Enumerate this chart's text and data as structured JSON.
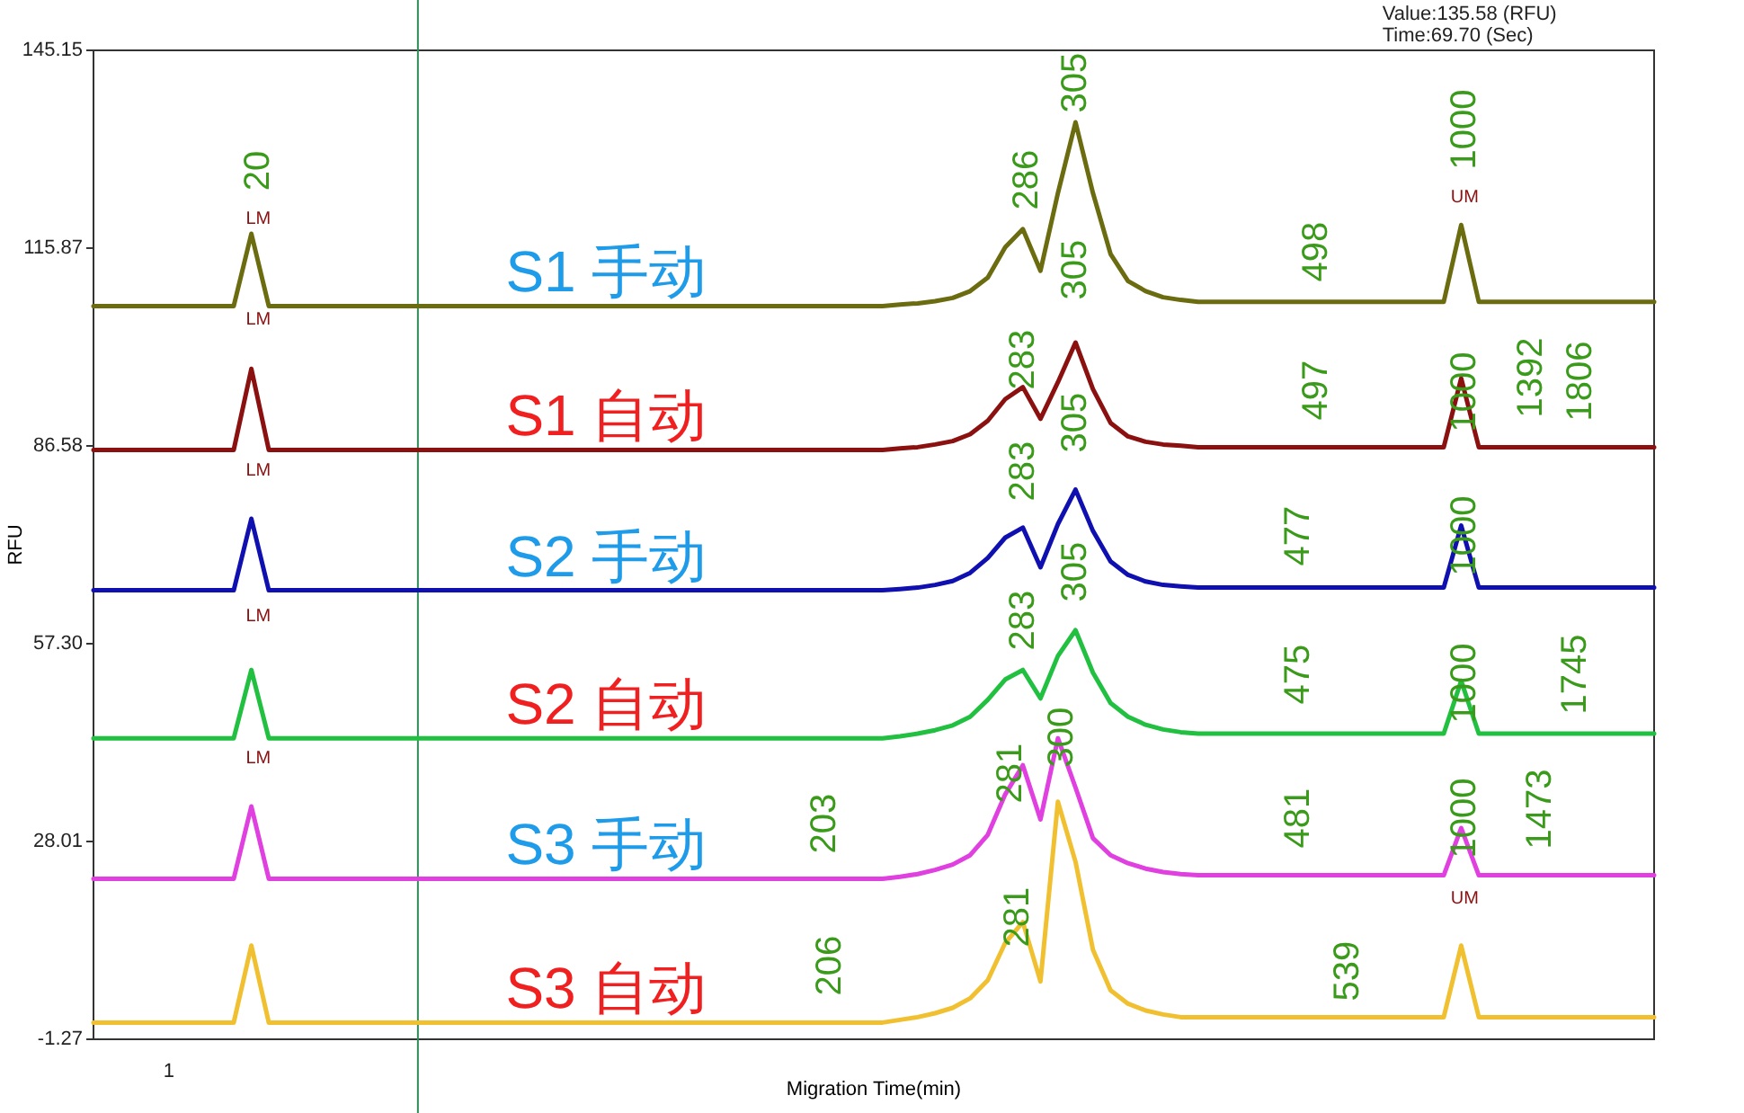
{
  "chart_data": {
    "type": "line",
    "xlabel": "Migration Time(min)",
    "ylabel": "RFU",
    "categories": [
      null,
      null,
      null,
      null,
      null,
      null,
      null,
      null,
      null,
      null,
      null,
      null,
      null,
      null,
      null,
      null,
      null,
      null,
      null,
      null,
      null,
      null,
      null,
      null,
      null,
      null,
      null,
      null,
      null,
      null,
      null,
      null,
      null,
      null,
      null,
      null,
      null,
      null,
      null,
      null,
      null,
      null,
      null,
      null,
      null,
      null,
      null,
      null,
      null,
      null,
      null,
      null,
      null,
      null,
      null,
      null,
      null,
      null,
      null,
      null,
      null,
      null,
      null,
      null,
      null,
      null,
      null,
      null,
      null,
      null,
      null,
      null,
      null,
      null,
      null,
      null,
      null,
      null,
      null,
      null,
      null,
      null,
      null,
      null,
      null,
      null,
      null,
      null,
      null,
      null
    ],
    "ylim": [
      -1.27,
      145.15
    ],
    "yticks": [
      145.15,
      115.87,
      86.58,
      {
        "value": 57.3,
        "label": "57.30"
      },
      28.01,
      -1.27
    ],
    "series": [
      {
        "name": "S1 手动",
        "color": "#6b6b10",
        "values": [
          107.3,
          107.3,
          107.3,
          107.3,
          107.3,
          107.3,
          107.3,
          107.3,
          107.3,
          118.0,
          107.3,
          107.3,
          107.3,
          107.3,
          107.3,
          107.3,
          107.3,
          107.3,
          107.3,
          107.3,
          107.3,
          107.3,
          107.3,
          107.3,
          107.3,
          107.3,
          107.3,
          107.3,
          107.3,
          107.3,
          107.3,
          107.3,
          107.3,
          107.3,
          107.3,
          107.3,
          107.3,
          107.3,
          107.3,
          107.3,
          107.3,
          107.3,
          107.3,
          107.3,
          107.3,
          107.3,
          107.5,
          107.7,
          108.0,
          108.5,
          109.5,
          111.5,
          116.0,
          118.7,
          112.5,
          124.0,
          134.5,
          124.0,
          115.0,
          111.0,
          109.5,
          108.6,
          108.2,
          107.9,
          107.9,
          107.9,
          107.9,
          107.9,
          107.9,
          107.9,
          107.9,
          107.9,
          107.9,
          107.9,
          107.9,
          107.9,
          107.9,
          107.9,
          119.3,
          107.9,
          107.9,
          107.9,
          107.9,
          107.9,
          107.9,
          107.9,
          107.9,
          107.9,
          107.9,
          107.9
        ]
      },
      {
        "name": "S1 自动",
        "color": "#8b1010",
        "values": [
          86.0,
          86.0,
          86.0,
          86.0,
          86.0,
          86.0,
          86.0,
          86.0,
          86.0,
          98.0,
          86.0,
          86.0,
          86.0,
          86.0,
          86.0,
          86.0,
          86.0,
          86.0,
          86.0,
          86.0,
          86.0,
          86.0,
          86.0,
          86.0,
          86.0,
          86.0,
          86.0,
          86.0,
          86.0,
          86.0,
          86.0,
          86.0,
          86.0,
          86.0,
          86.0,
          86.0,
          86.0,
          86.0,
          86.0,
          86.0,
          86.0,
          86.0,
          86.0,
          86.0,
          86.0,
          86.0,
          86.2,
          86.4,
          86.8,
          87.3,
          88.3,
          90.3,
          93.5,
          95.3,
          90.6,
          96.0,
          101.9,
          95.0,
          90.0,
          88.0,
          87.2,
          86.8,
          86.6,
          86.4,
          86.4,
          86.4,
          86.4,
          86.4,
          86.4,
          86.4,
          86.4,
          86.4,
          86.4,
          86.4,
          86.4,
          86.4,
          86.4,
          86.4,
          96.6,
          86.4,
          86.4,
          86.4,
          86.4,
          86.4,
          86.4,
          86.4,
          86.4,
          86.4,
          86.4,
          86.4
        ]
      },
      {
        "name": "S2 手动",
        "color": "#1010b0",
        "values": [
          65.2,
          65.2,
          65.2,
          65.2,
          65.2,
          65.2,
          65.2,
          65.2,
          65.2,
          75.8,
          65.2,
          65.2,
          65.2,
          65.2,
          65.2,
          65.2,
          65.2,
          65.2,
          65.2,
          65.2,
          65.2,
          65.2,
          65.2,
          65.2,
          65.2,
          65.2,
          65.2,
          65.2,
          65.2,
          65.2,
          65.2,
          65.2,
          65.2,
          65.2,
          65.2,
          65.2,
          65.2,
          65.2,
          65.2,
          65.2,
          65.2,
          65.2,
          65.2,
          65.2,
          65.2,
          65.2,
          65.4,
          65.6,
          66.0,
          66.6,
          67.8,
          70.0,
          73.0,
          74.5,
          68.6,
          75.0,
          80.1,
          74.0,
          69.5,
          67.5,
          66.5,
          66.0,
          65.8,
          65.6,
          65.6,
          65.6,
          65.6,
          65.6,
          65.6,
          65.6,
          65.6,
          65.6,
          65.6,
          65.6,
          65.6,
          65.6,
          65.6,
          65.6,
          74.8,
          65.6,
          65.6,
          65.6,
          65.6,
          65.6,
          65.6,
          65.6,
          65.6,
          65.6,
          65.6,
          65.6
        ]
      },
      {
        "name": "S2 自动",
        "color": "#22c040",
        "values": [
          43.3,
          43.3,
          43.3,
          43.3,
          43.3,
          43.3,
          43.3,
          43.3,
          43.3,
          53.4,
          43.3,
          43.3,
          43.3,
          43.3,
          43.3,
          43.3,
          43.3,
          43.3,
          43.3,
          43.3,
          43.3,
          43.3,
          43.3,
          43.3,
          43.3,
          43.3,
          43.3,
          43.3,
          43.3,
          43.3,
          43.3,
          43.3,
          43.3,
          43.3,
          43.3,
          43.3,
          43.3,
          43.3,
          43.3,
          43.3,
          43.3,
          43.3,
          43.3,
          43.3,
          43.3,
          43.3,
          43.6,
          44.0,
          44.5,
          45.2,
          46.5,
          49.0,
          52.0,
          53.4,
          49.2,
          55.5,
          59.3,
          53.0,
          48.5,
          46.5,
          45.3,
          44.6,
          44.2,
          44.0,
          44.0,
          44.0,
          44.0,
          44.0,
          44.0,
          44.0,
          44.0,
          44.0,
          44.0,
          44.0,
          44.0,
          44.0,
          44.0,
          44.0,
          51.8,
          44.0,
          44.0,
          44.0,
          44.0,
          44.0,
          44.0,
          44.0,
          44.0,
          44.0,
          44.0,
          44.0
        ]
      },
      {
        "name": "S3 手动",
        "color": "#e040e0",
        "values": [
          22.5,
          22.5,
          22.5,
          22.5,
          22.5,
          22.5,
          22.5,
          22.5,
          22.5,
          33.2,
          22.5,
          22.5,
          22.5,
          22.5,
          22.5,
          22.5,
          22.5,
          22.5,
          22.5,
          22.5,
          22.5,
          22.5,
          22.5,
          22.5,
          22.5,
          22.5,
          22.5,
          22.5,
          22.5,
          22.5,
          22.5,
          22.5,
          22.5,
          22.5,
          22.5,
          22.5,
          22.5,
          22.5,
          22.5,
          22.5,
          22.5,
          22.5,
          22.5,
          22.5,
          22.5,
          22.5,
          22.8,
          23.2,
          23.8,
          24.6,
          26.0,
          29.0,
          35.0,
          39.3,
          31.3,
          43.3,
          36.0,
          28.5,
          26.0,
          24.8,
          24.0,
          23.5,
          23.2,
          23.0,
          23.0,
          23.0,
          23.0,
          23.0,
          23.0,
          23.0,
          23.0,
          23.0,
          23.0,
          23.0,
          23.0,
          23.0,
          23.0,
          23.0,
          30.0,
          23.0,
          23.0,
          23.0,
          23.0,
          23.0,
          23.0,
          23.0,
          23.0,
          23.0,
          23.0,
          23.0
        ]
      },
      {
        "name": "S3 自动",
        "color": "#f0c030",
        "values": [
          1.2,
          1.2,
          1.2,
          1.2,
          1.2,
          1.2,
          1.2,
          1.2,
          1.2,
          12.6,
          1.2,
          1.2,
          1.2,
          1.2,
          1.2,
          1.2,
          1.2,
          1.2,
          1.2,
          1.2,
          1.2,
          1.2,
          1.2,
          1.2,
          1.2,
          1.2,
          1.2,
          1.2,
          1.2,
          1.2,
          1.2,
          1.2,
          1.2,
          1.2,
          1.2,
          1.2,
          1.2,
          1.2,
          1.2,
          1.2,
          1.2,
          1.2,
          1.2,
          1.2,
          1.2,
          1.2,
          1.6,
          2.0,
          2.6,
          3.4,
          4.8,
          7.5,
          13.0,
          16.1,
          7.3,
          33.9,
          25.0,
          12.0,
          6.0,
          4.0,
          3.0,
          2.4,
          2.0,
          2.0,
          2.0,
          2.0,
          2.0,
          2.0,
          2.0,
          2.0,
          2.0,
          2.0,
          2.0,
          2.0,
          2.0,
          2.0,
          2.0,
          2.0,
          12.6,
          2.0,
          2.0,
          2.0,
          2.0,
          2.0,
          2.0,
          2.0,
          2.0,
          2.0,
          2.0,
          2.0
        ]
      }
    ],
    "annotations": [
      "Value:135.58 (RFU)",
      "Time:69.70 (Sec)",
      "1",
      "20",
      "LM",
      "286",
      "305",
      "498",
      "1000",
      "UM",
      "305",
      "LM",
      "283",
      "497",
      "1000",
      "1392",
      "1806",
      "305",
      "LM",
      "283",
      "477",
      "1000",
      "305",
      "LM",
      "283",
      "475",
      "1000",
      "1745",
      "LM",
      "281",
      "300",
      "203",
      "481",
      "1000",
      "1473",
      "281",
      "206",
      "539",
      "UM"
    ]
  }
}
